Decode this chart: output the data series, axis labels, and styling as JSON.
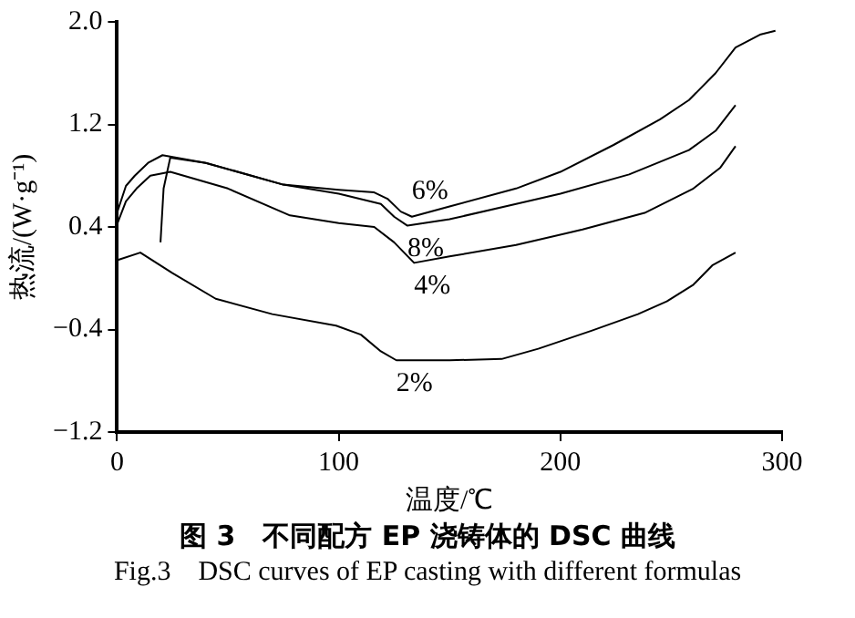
{
  "chart_data": {
    "type": "line",
    "title": "图 3　不同配方 EP 浇铸体的 DSC 曲线",
    "subtitle": "Fig.3　DSC curves of EP casting with different formulas",
    "xlabel": "温度/℃",
    "ylabel": "热流/(W·g⁻¹)",
    "xlim": [
      0,
      300
    ],
    "xticks": [
      0,
      100,
      200,
      300
    ],
    "ylim": [
      -1.2,
      2.0
    ],
    "yticks": [
      {
        "value": 2,
        "label": "2.0"
      },
      1.2,
      0.4,
      -0.4,
      -1.2
    ],
    "grid": false,
    "legend": false,
    "marker": "none",
    "line_style": "solid",
    "series": [
      {
        "name": "6%",
        "color": "#000000",
        "x": [
          0,
          4,
          8,
          14,
          20.5,
          40,
          75,
          100,
          116,
          122,
          128,
          133,
          150,
          180,
          200,
          224,
          245,
          258,
          270,
          279,
          290,
          297
        ],
        "values": [
          0.51,
          0.72,
          0.8,
          0.9,
          0.96,
          0.9,
          0.73,
          0.69,
          0.67,
          0.62,
          0.52,
          0.48,
          0.56,
          0.7,
          0.83,
          1.04,
          1.24,
          1.39,
          1.6,
          1.8,
          1.9,
          1.93
        ]
      },
      {
        "name": "8%",
        "color": "#000000",
        "x": [
          19.6,
          21,
          24,
          40,
          75,
          100,
          119,
          125,
          131,
          150,
          180,
          200,
          231,
          258,
          270,
          279
        ],
        "values": [
          0.28,
          0.7,
          0.94,
          0.9,
          0.73,
          0.66,
          0.58,
          0.48,
          0.41,
          0.46,
          0.58,
          0.66,
          0.81,
          1.0,
          1.15,
          1.35
        ]
      },
      {
        "name": "4%",
        "color": "#000000",
        "x": [
          0,
          4,
          8.8,
          15,
          24,
          50,
          78,
          100,
          116,
          125,
          134,
          150,
          180,
          210,
          238,
          260,
          272,
          279
        ],
        "values": [
          0.42,
          0.6,
          0.7,
          0.8,
          0.83,
          0.7,
          0.49,
          0.43,
          0.4,
          0.28,
          0.12,
          0.17,
          0.26,
          0.38,
          0.51,
          0.7,
          0.86,
          1.03
        ]
      },
      {
        "name": "2%",
        "color": "#000000",
        "x": [
          0,
          10.5,
          25,
          44.5,
          70,
          98.8,
          110,
          119,
          126,
          150,
          173.5,
          190,
          214,
          235,
          248,
          260,
          268.5,
          279
        ],
        "values": [
          0.14,
          0.2,
          0.04,
          -0.16,
          -0.28,
          -0.37,
          -0.44,
          -0.57,
          -0.64,
          -0.64,
          -0.63,
          -0.55,
          -0.41,
          -0.28,
          -0.18,
          -0.05,
          0.1,
          0.2
        ]
      }
    ]
  }
}
